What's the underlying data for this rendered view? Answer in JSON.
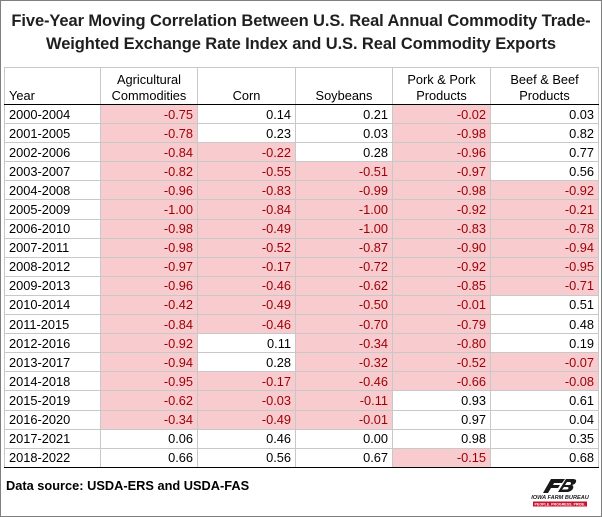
{
  "chart_data": {
    "type": "table",
    "title_lines": [
      "Five-Year Moving Correlation Between U.S. Real Annual Commodity Trade-",
      "Weighted Exchange Rate Index and U.S. Real Commodity Exports"
    ],
    "columns": [
      "Year",
      "Agricultural Commodities",
      "Corn",
      "Soybeans",
      "Pork & Pork Products",
      "Beef & Beef Products"
    ],
    "rows": [
      {
        "year": "2000-2004",
        "values": [
          "-0.75",
          "0.14",
          "0.21",
          "-0.02",
          "0.03"
        ]
      },
      {
        "year": "2001-2005",
        "values": [
          "-0.78",
          "0.23",
          "0.03",
          "-0.98",
          "0.82"
        ]
      },
      {
        "year": "2002-2006",
        "values": [
          "-0.84",
          "-0.22",
          "0.28",
          "-0.96",
          "0.77"
        ]
      },
      {
        "year": "2003-2007",
        "values": [
          "-0.82",
          "-0.55",
          "-0.51",
          "-0.97",
          "0.56"
        ]
      },
      {
        "year": "2004-2008",
        "values": [
          "-0.96",
          "-0.83",
          "-0.99",
          "-0.98",
          "-0.92"
        ]
      },
      {
        "year": "2005-2009",
        "values": [
          "-1.00",
          "-0.84",
          "-1.00",
          "-0.92",
          "-0.21"
        ]
      },
      {
        "year": "2006-2010",
        "values": [
          "-0.98",
          "-0.49",
          "-1.00",
          "-0.83",
          "-0.78"
        ]
      },
      {
        "year": "2007-2011",
        "values": [
          "-0.98",
          "-0.52",
          "-0.87",
          "-0.90",
          "-0.94"
        ]
      },
      {
        "year": "2008-2012",
        "values": [
          "-0.97",
          "-0.17",
          "-0.72",
          "-0.92",
          "-0.95"
        ]
      },
      {
        "year": "2009-2013",
        "values": [
          "-0.96",
          "-0.46",
          "-0.62",
          "-0.85",
          "-0.71"
        ]
      },
      {
        "year": "2010-2014",
        "values": [
          "-0.42",
          "-0.49",
          "-0.50",
          "-0.01",
          "0.51"
        ]
      },
      {
        "year": "2011-2015",
        "values": [
          "-0.84",
          "-0.46",
          "-0.70",
          "-0.79",
          "0.48"
        ]
      },
      {
        "year": "2012-2016",
        "values": [
          "-0.92",
          "0.11",
          "-0.34",
          "-0.80",
          "0.19"
        ]
      },
      {
        "year": "2013-2017",
        "values": [
          "-0.94",
          "0.28",
          "-0.32",
          "-0.52",
          "-0.07"
        ]
      },
      {
        "year": "2014-2018",
        "values": [
          "-0.95",
          "-0.17",
          "-0.46",
          "-0.66",
          "-0.08"
        ]
      },
      {
        "year": "2015-2019",
        "values": [
          "-0.62",
          "-0.03",
          "-0.11",
          "0.93",
          "0.61"
        ]
      },
      {
        "year": "2016-2020",
        "values": [
          "-0.34",
          "-0.49",
          "-0.01",
          "0.97",
          "0.04"
        ]
      },
      {
        "year": "2017-2021",
        "values": [
          "0.06",
          "0.46",
          "0.00",
          "0.98",
          "0.35"
        ]
      },
      {
        "year": "2018-2022",
        "values": [
          "0.66",
          "0.56",
          "0.67",
          "-0.15",
          "0.68"
        ]
      }
    ],
    "highlight_rule": "negative values shaded",
    "highlight_color": "#f8cbcf",
    "highlight_text_color": "#9c0006"
  },
  "footer": {
    "source": "Data source: USDA-ERS and USDA-FAS",
    "logo_name": "IOWA FARM BUREAU",
    "logo_tagline": "PEOPLE. PROGRESS. PRIDE."
  }
}
